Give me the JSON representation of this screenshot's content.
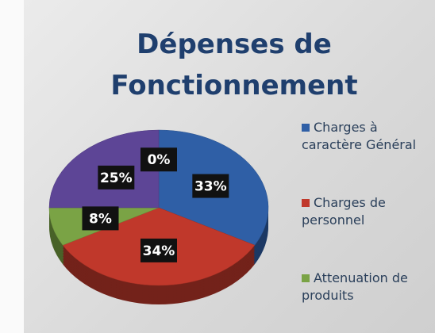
{
  "chart_data": {
    "type": "pie",
    "title": "Dépenses de Fonctionnement",
    "categories": [
      "Charges à caractère Général",
      "Charges de personnel",
      "Attenuation de produits",
      null,
      null
    ],
    "values": [
      33,
      34,
      8,
      25,
      0
    ],
    "value_labels": [
      "33%",
      "34%",
      "8%",
      "25%",
      "0%"
    ],
    "colors": [
      "#2f5fa6",
      "#c0382b",
      "#7aa345",
      "#5d4596",
      "#4bacc6"
    ],
    "legend": "right"
  }
}
